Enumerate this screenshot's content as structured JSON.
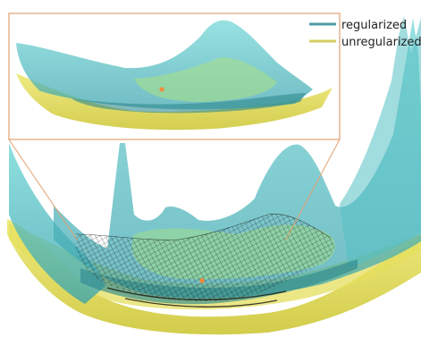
{
  "chart_data": {
    "type": "surface",
    "title": "",
    "xlabel": "",
    "ylabel": "",
    "inset": true,
    "series": [
      {
        "name": "regularized",
        "color": "#5fc7c9",
        "legend_color": "#4a9ea3"
      },
      {
        "name": "unregularized",
        "color": "#e3dd55",
        "legend_color": "#d4cf66"
      }
    ],
    "annotations": [
      {
        "kind": "marker",
        "color": "#f08a3c"
      },
      {
        "kind": "wireframe",
        "color": "#111111"
      }
    ]
  }
}
